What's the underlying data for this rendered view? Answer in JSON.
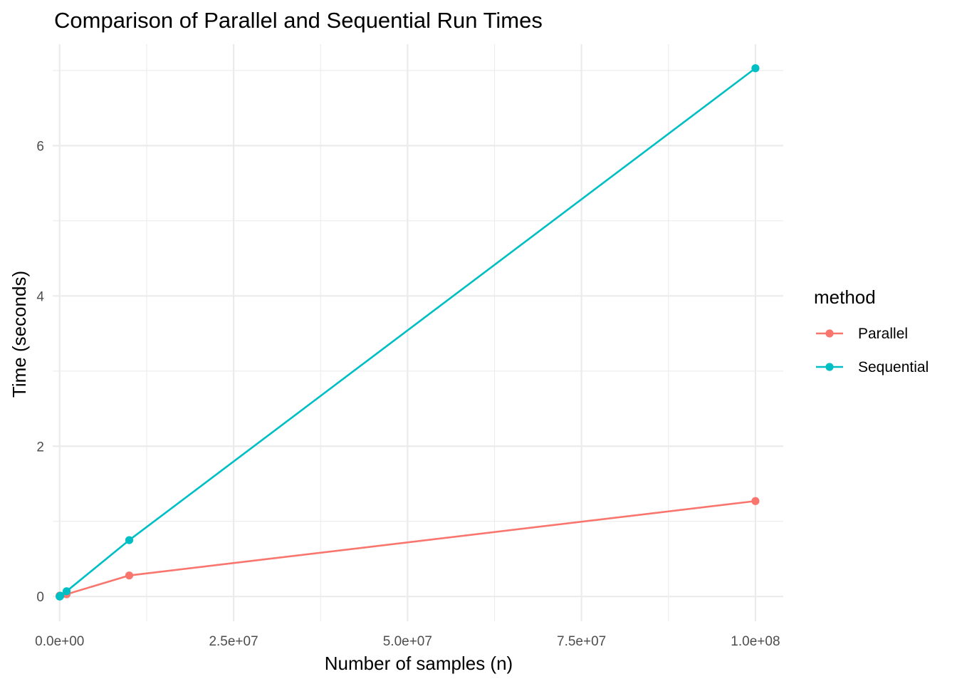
{
  "chart_data": {
    "type": "line",
    "title": "Comparison of Parallel and Sequential Run Times",
    "xlabel": "Number of samples (n)",
    "ylabel": "Time (seconds)",
    "xlim": [
      -1000000,
      104000000
    ],
    "ylim": [
      -0.33,
      7.35
    ],
    "x_ticks": [
      0,
      25000000,
      50000000,
      75000000,
      100000000
    ],
    "x_tick_labels": [
      "0.0e+00",
      "2.5e+07",
      "5.0e+07",
      "7.5e+07",
      "1.0e+08"
    ],
    "y_ticks": [
      0,
      2,
      4,
      6
    ],
    "y_tick_labels": [
      "0",
      "2",
      "4",
      "6"
    ],
    "grid": true,
    "legend": {
      "title": "method",
      "position": "right"
    },
    "series": [
      {
        "name": "Parallel",
        "color": "#F8766D",
        "x": [
          1000,
          10000,
          100000,
          1000000,
          10000000,
          100000000
        ],
        "y": [
          0.01,
          0.01,
          0.01,
          0.03,
          0.28,
          1.27
        ]
      },
      {
        "name": "Sequential",
        "color": "#00BFC4",
        "x": [
          1000,
          10000,
          100000,
          1000000,
          10000000,
          100000000
        ],
        "y": [
          0.0,
          0.0,
          0.01,
          0.07,
          0.75,
          7.03
        ]
      }
    ]
  }
}
